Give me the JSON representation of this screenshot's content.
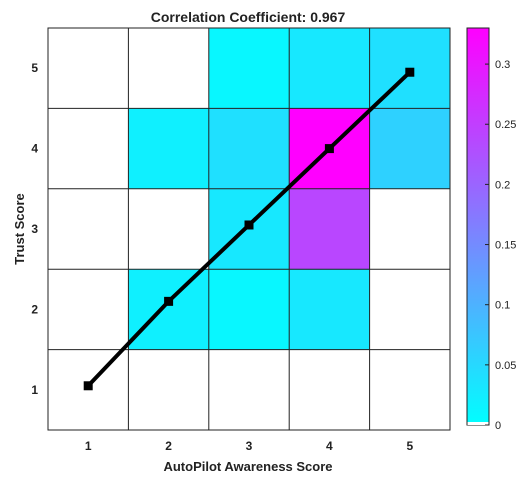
{
  "chart_data": {
    "type": "heatmap",
    "title": "Correlation Coefficient: 0.967",
    "xlabel": "AutoPilot Awareness Score",
    "ylabel": "Trust Score",
    "x_categories": [
      "1",
      "2",
      "3",
      "4",
      "5"
    ],
    "y_categories": [
      "1",
      "2",
      "3",
      "4",
      "5"
    ],
    "cells_note": "rows ordered from y=1 (bottom) to y=5 (top); null = no data (white)",
    "cells": [
      [
        null,
        null,
        null,
        null,
        null
      ],
      [
        null,
        0.02,
        0.01,
        0.03,
        null
      ],
      [
        null,
        null,
        0.03,
        0.24,
        null
      ],
      [
        null,
        0.02,
        0.04,
        0.33,
        0.06
      ],
      [
        null,
        null,
        0.01,
        0.03,
        0.04
      ]
    ],
    "fit_line": {
      "markers": [
        {
          "x": 1,
          "y": 1.05
        },
        {
          "x": 2,
          "y": 2.1
        },
        {
          "x": 3,
          "y": 3.05
        },
        {
          "x": 4,
          "y": 4.0
        },
        {
          "x": 5,
          "y": 4.95
        }
      ],
      "color": "#000000"
    },
    "colorbar": {
      "min": 0,
      "max": 0.33,
      "ticks": [
        "0",
        "0.05",
        "0.1",
        "0.15",
        "0.2",
        "0.25",
        "0.3"
      ],
      "tick_values": [
        0,
        0.05,
        0.1,
        0.15,
        0.2,
        0.25,
        0.3
      ],
      "color_low": "#00ffff",
      "color_high": "#ff00ff"
    },
    "xlim": [
      0.5,
      5.5
    ],
    "ylim": [
      0.5,
      5.5
    ],
    "grid": true
  }
}
